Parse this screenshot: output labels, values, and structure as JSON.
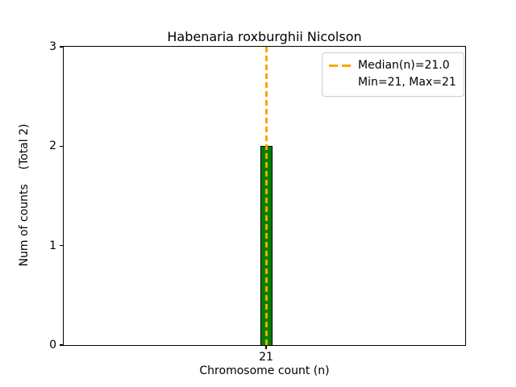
{
  "chart_data": {
    "type": "bar",
    "title": "Habenaria roxburghii Nicolson",
    "xlabel": "Chromosome count (n)",
    "ylabel": "Num of counts    (Total 2)",
    "categories": [
      "21"
    ],
    "values": [
      2
    ],
    "total_counts": 2,
    "ylim": [
      0,
      3
    ],
    "yticks": [
      "0",
      "1",
      "2",
      "3"
    ],
    "xticks": [
      "21"
    ],
    "median": 21.0,
    "min": 21,
    "max": 21,
    "legend": {
      "entries": [
        "Median(n)=21.0",
        "Min=21, Max=21"
      ],
      "position": "upper right"
    },
    "grid": false,
    "colors": {
      "bar_fill": "#008000",
      "bar_edge": "#000000",
      "median_line": "#FFA500",
      "legend_border": "#cccccc",
      "axes": "#000000"
    }
  }
}
